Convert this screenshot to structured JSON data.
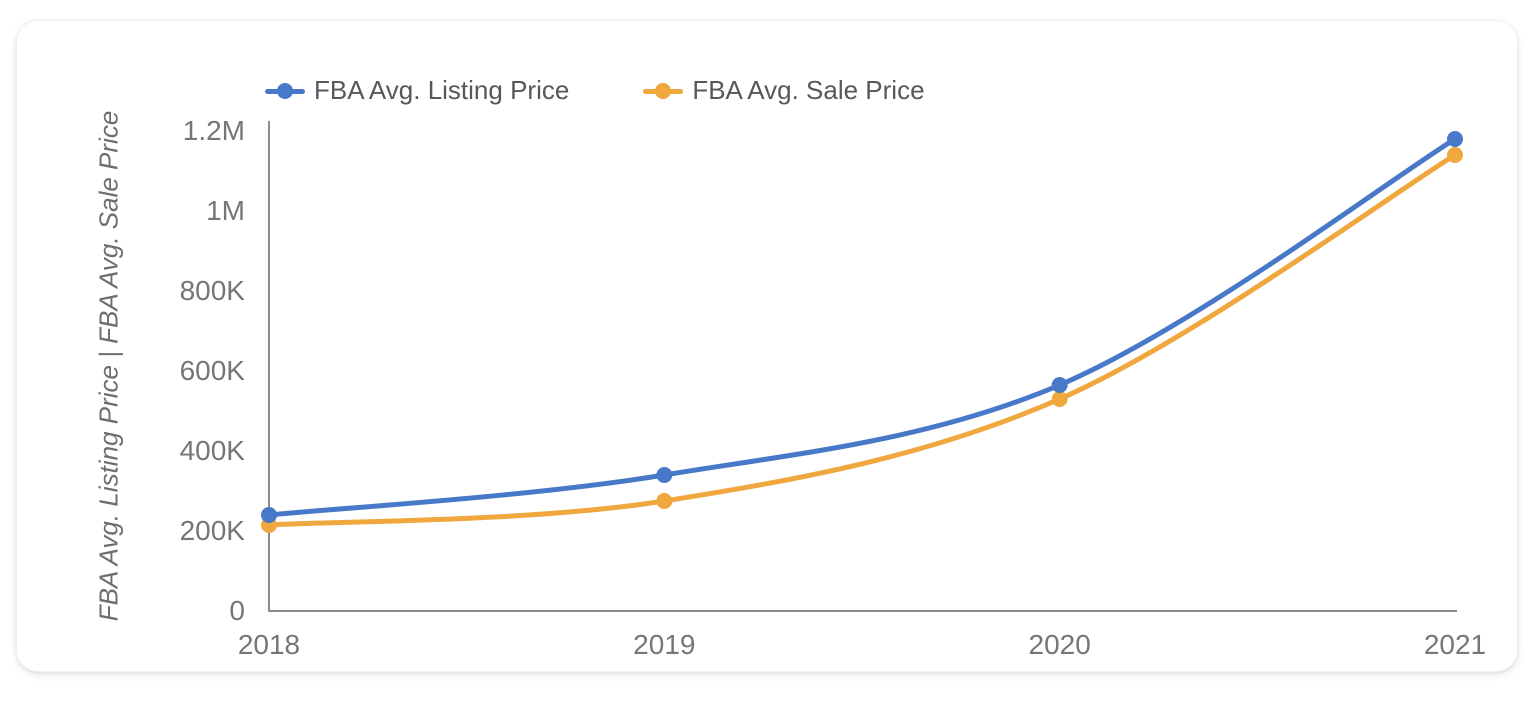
{
  "chart_data": {
    "type": "line",
    "title": "",
    "x": [
      "2018",
      "2019",
      "2020",
      "2021"
    ],
    "series": [
      {
        "name": "FBA Avg. Listing Price",
        "color": "#4878c8",
        "values": [
          240000,
          340000,
          565000,
          1180000
        ]
      },
      {
        "name": "FBA Avg. Sale Price",
        "color": "#efa73e",
        "values": [
          215000,
          275000,
          530000,
          1140000
        ]
      }
    ],
    "xlabel": "",
    "ylabel": "FBA Avg. Listing Price | FBA Avg. Sale Price",
    "ylim": [
      0,
      1200000
    ],
    "ytick_interval": 200000,
    "ytick_labels": [
      "0",
      "200K",
      "400K",
      "600K",
      "800K",
      "1M",
      "1.2M"
    ],
    "grid": false,
    "legend_position": "top-left",
    "marker_style": "circle",
    "axis_color": "#8c8c8c",
    "tick_text_color": "#767676",
    "legend_text_color": "#56585c"
  }
}
